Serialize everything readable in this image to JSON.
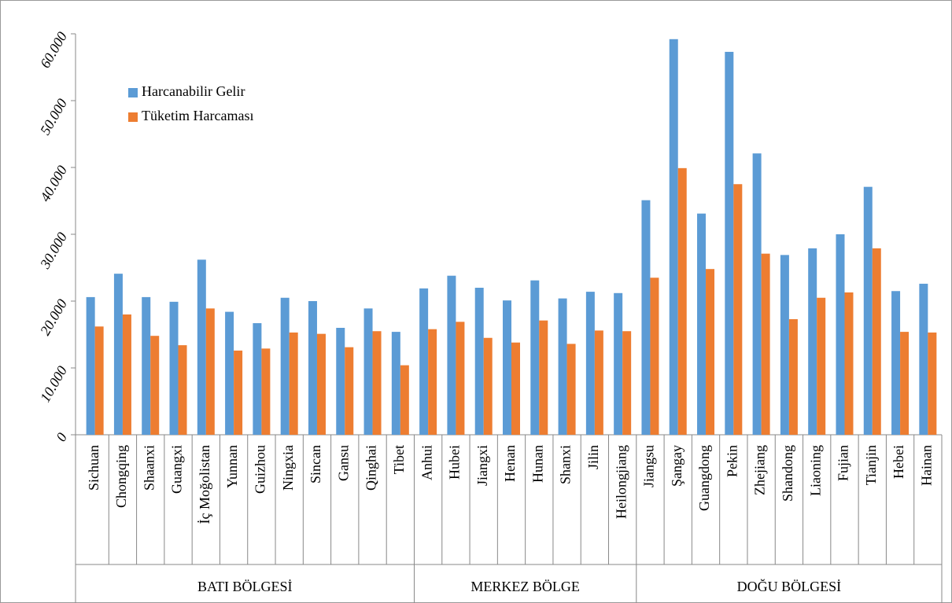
{
  "chart_data": {
    "type": "bar",
    "categories": [
      "Sichuan",
      "Chongqing",
      "Shaanxi",
      "Guangxi",
      "İç Moğolistan",
      "Yunnan",
      "Guizhou",
      "Ningxia",
      "Sincan",
      "Gansu",
      "Qinghai",
      "Tibet",
      "Anhui",
      "Hubei",
      "Jiangxi",
      "Henan",
      "Hunan",
      "Shanxi",
      "Jilin",
      "Heilongjiang",
      "Jiangsu",
      "Şangay",
      "Guangdong",
      "Pekin",
      "Zhejiang",
      "Shandong",
      "Liaoning",
      "Fujian",
      "Tianjin",
      "Hebei",
      "Hainan"
    ],
    "groups": [
      {
        "label": "BATI BÖLGESİ",
        "size": 12
      },
      {
        "label": "MERKEZ BÖLGE",
        "size": 8
      },
      {
        "label": "DOĞU BÖLGESİ",
        "size": 11
      }
    ],
    "series": [
      {
        "name": "Harcanabilir Gelir",
        "color": "#5b9bd5",
        "values": [
          20600,
          24100,
          20600,
          19900,
          26200,
          18400,
          16700,
          20500,
          20000,
          16000,
          18900,
          15400,
          21900,
          23800,
          22000,
          20100,
          23100,
          20400,
          21400,
          21200,
          35100,
          59200,
          33100,
          57300,
          42100,
          26900,
          27900,
          30000,
          37100,
          21500,
          22600
        ]
      },
      {
        "name": "Tüketim Harcaması",
        "color": "#ed7d31",
        "values": [
          16200,
          18000,
          14800,
          13400,
          18900,
          12600,
          12900,
          15300,
          15100,
          13100,
          15500,
          10400,
          15800,
          16900,
          14500,
          13800,
          17100,
          13600,
          15600,
          15500,
          23500,
          39900,
          24800,
          37500,
          27100,
          17300,
          20500,
          21300,
          27900,
          15400,
          15300
        ]
      }
    ],
    "ylim": [
      0,
      60000
    ],
    "yticks": [
      0,
      {
        "value": 10000,
        "label": "10.000"
      },
      {
        "value": 20000,
        "label": "20.000"
      },
      {
        "value": 30000,
        "label": "30.000"
      },
      {
        "value": 40000,
        "label": "40.000"
      },
      {
        "value": 50000,
        "label": "50.000"
      },
      {
        "value": 60000,
        "label": "60.000"
      }
    ],
    "grid": false,
    "legend": "upper left"
  }
}
